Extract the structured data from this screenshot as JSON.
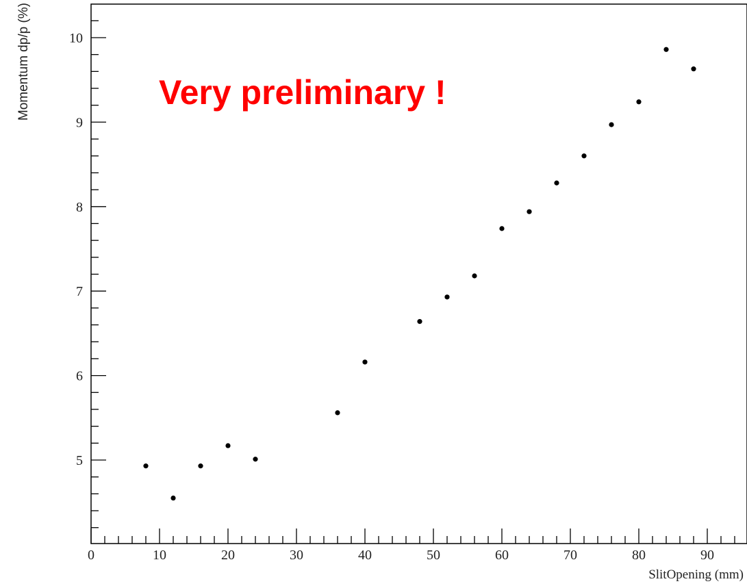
{
  "chart_data": {
    "type": "scatter",
    "xlabel": "SlitOpening (mm)",
    "ylabel": "Momentum dp/p (%)",
    "annotation": "Very preliminary !",
    "annotation_color": "#ff0000",
    "marker_color": "#000000",
    "axis_color": "#000000",
    "grid": false,
    "xlim": [
      0,
      96
    ],
    "ylim": [
      4.0,
      10.4
    ],
    "x_ticks": [
      "0",
      "10",
      "20",
      "30",
      "40",
      "50",
      "60",
      "70",
      "80",
      "90"
    ],
    "y_ticks": [
      "5",
      "6",
      "7",
      "8",
      "9",
      "10"
    ],
    "points": [
      {
        "x": 8,
        "y": 4.93
      },
      {
        "x": 12,
        "y": 4.55
      },
      {
        "x": 16,
        "y": 4.93
      },
      {
        "x": 20,
        "y": 5.17
      },
      {
        "x": 24,
        "y": 5.01
      },
      {
        "x": 36,
        "y": 5.56
      },
      {
        "x": 40,
        "y": 6.16
      },
      {
        "x": 48,
        "y": 6.64
      },
      {
        "x": 52,
        "y": 6.93
      },
      {
        "x": 56,
        "y": 7.18
      },
      {
        "x": 60,
        "y": 7.74
      },
      {
        "x": 64,
        "y": 7.94
      },
      {
        "x": 68,
        "y": 8.28
      },
      {
        "x": 72,
        "y": 8.6
      },
      {
        "x": 76,
        "y": 8.97
      },
      {
        "x": 80,
        "y": 9.24
      },
      {
        "x": 84,
        "y": 9.86
      },
      {
        "x": 88,
        "y": 9.63
      }
    ]
  }
}
